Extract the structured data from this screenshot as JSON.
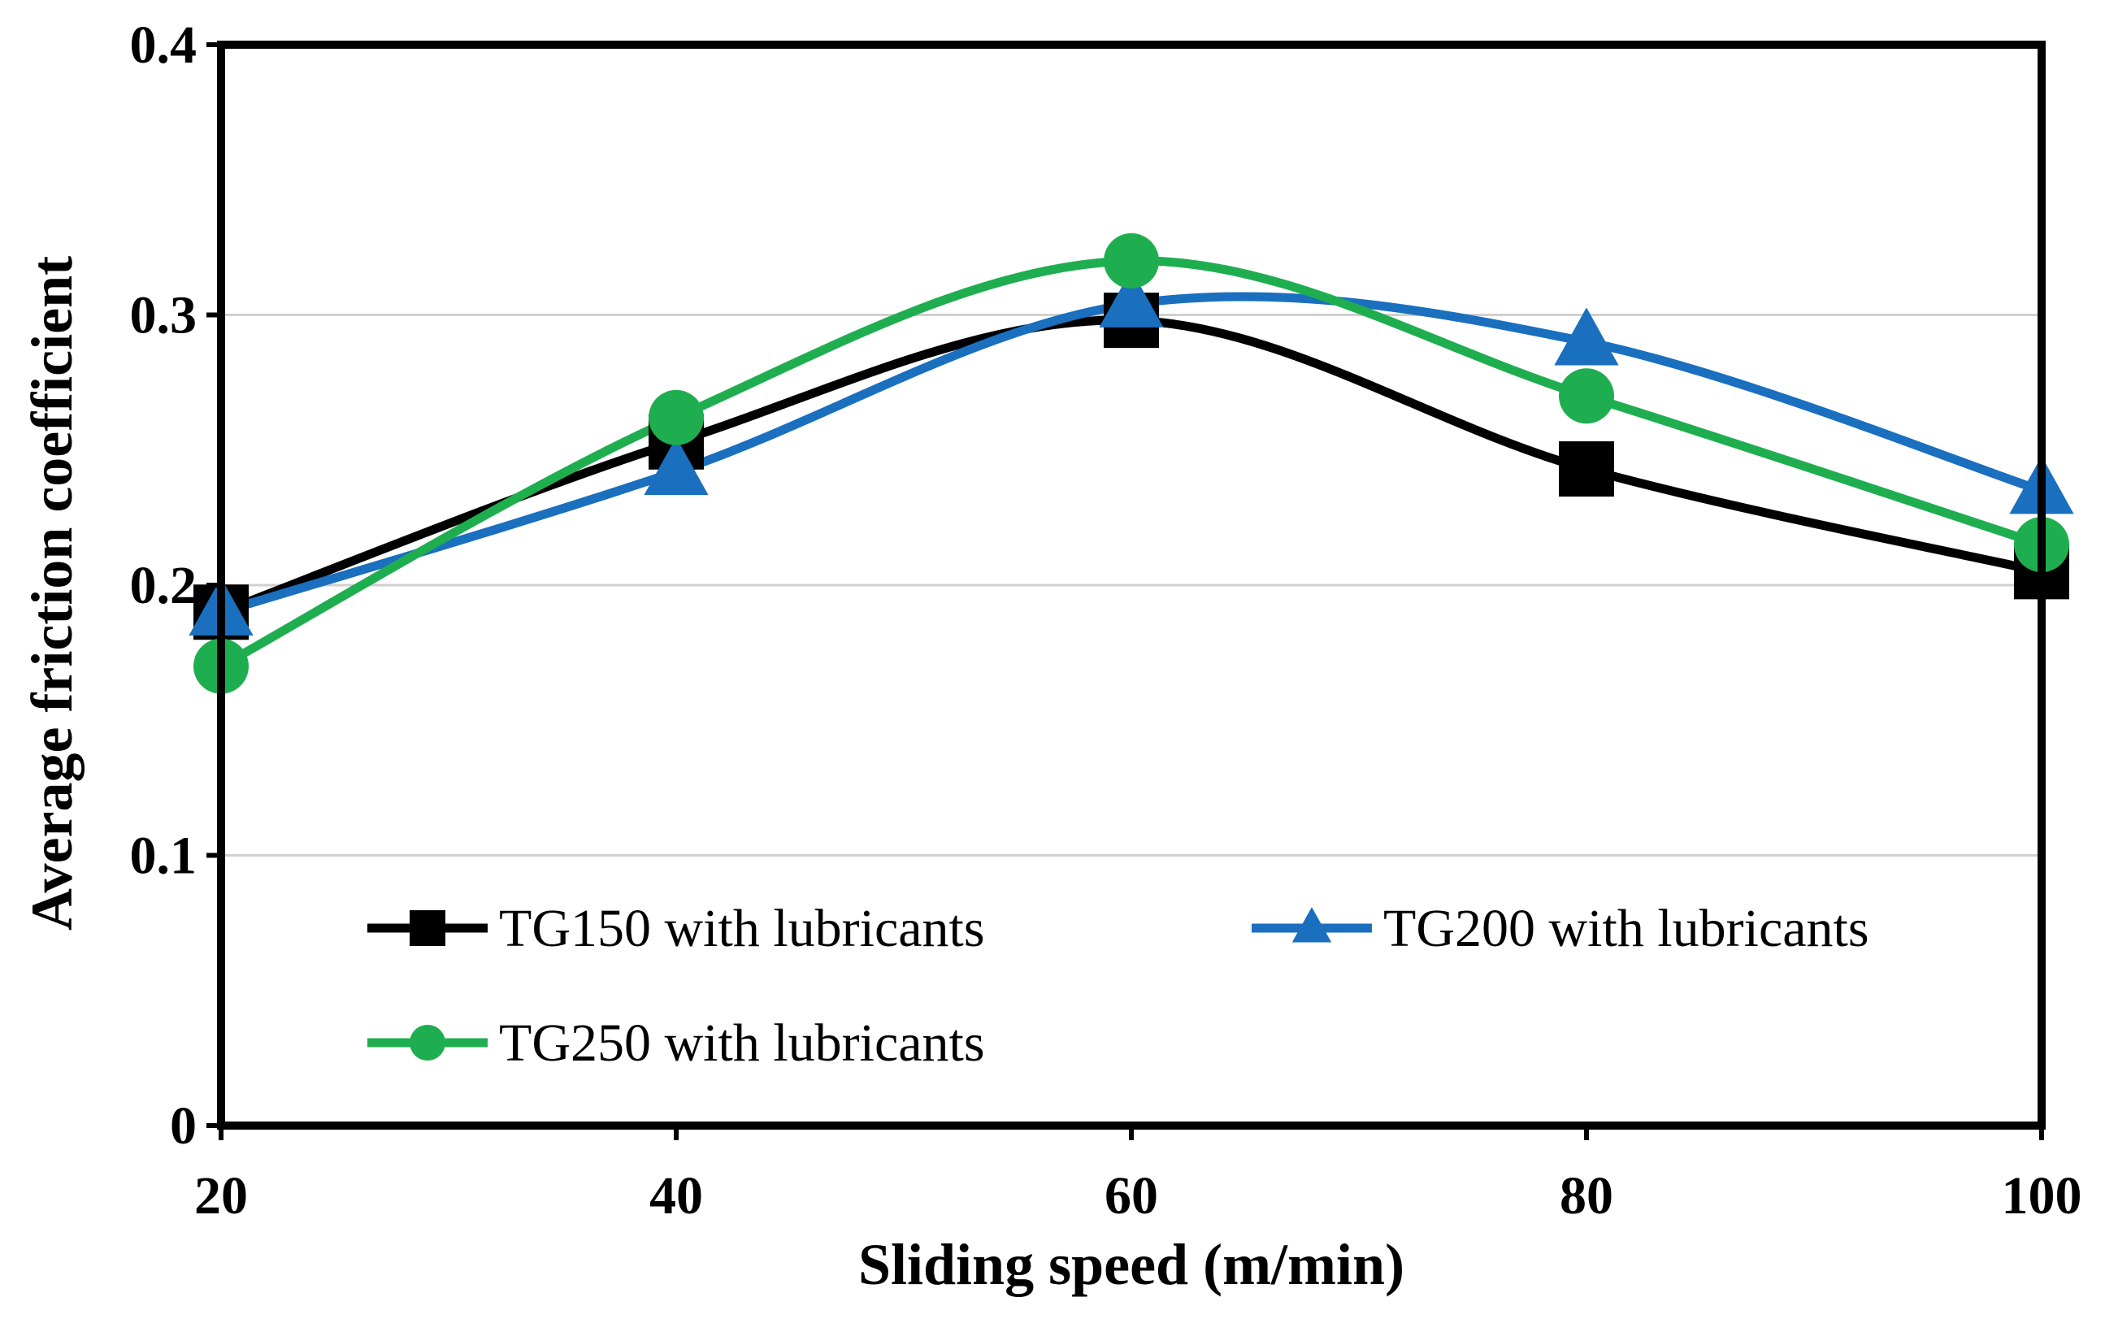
{
  "chart_data": {
    "type": "line",
    "title": "",
    "xlabel": "Sliding speed (m/min)",
    "ylabel": "Average friction coefficient",
    "x": [
      20,
      40,
      60,
      80,
      100
    ],
    "xticks": [
      "20",
      "40",
      "60",
      "80",
      "100"
    ],
    "yticks": [
      "0",
      "0.1",
      "0.2",
      "0.3",
      "0.4"
    ],
    "xlim": [
      20,
      100
    ],
    "ylim": [
      0,
      0.4
    ],
    "grid": "horizontal",
    "smooth": true,
    "legend_placement": "inside-bottom",
    "series": [
      {
        "name": "TG150 with lubricants",
        "values": [
          0.19,
          0.253,
          0.298,
          0.243,
          0.205
        ],
        "color": "#000000",
        "marker": "square"
      },
      {
        "name": "TG200 with lubricants",
        "values": [
          0.19,
          0.242,
          0.304,
          0.29,
          0.235
        ],
        "color": "#1a6fbf",
        "marker": "triangle"
      },
      {
        "name": "TG250 with lubricants",
        "values": [
          0.17,
          0.262,
          0.32,
          0.27,
          0.215
        ],
        "color": "#1fae4f",
        "marker": "circle"
      }
    ]
  }
}
